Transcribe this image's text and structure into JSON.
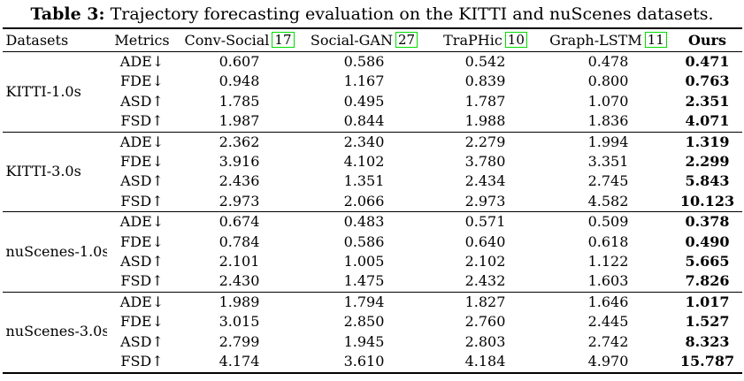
{
  "caption": {
    "label": "Table 3:",
    "text": " Trajectory forecasting evaluation on the KITTI and nuScenes datasets."
  },
  "table": {
    "headers": [
      {
        "label": "Datasets"
      },
      {
        "label": "Metrics"
      },
      {
        "label": "Conv-Social",
        "cite": "17"
      },
      {
        "label": "Social-GAN",
        "cite": "27"
      },
      {
        "label": "TraPHic",
        "cite": "10"
      },
      {
        "label": "Graph-LSTM",
        "cite": "11"
      },
      {
        "label": "Ours"
      }
    ],
    "groups": [
      {
        "dataset": "KITTI-1.0s",
        "rows": [
          {
            "metric": "ADE↓",
            "values": [
              "0.607",
              "0.586",
              "0.542",
              "0.478",
              "0.471"
            ]
          },
          {
            "metric": "FDE↓",
            "values": [
              "0.948",
              "1.167",
              "0.839",
              "0.800",
              "0.763"
            ]
          },
          {
            "metric": "ASD↑",
            "values": [
              "1.785",
              "0.495",
              "1.787",
              "1.070",
              "2.351"
            ]
          },
          {
            "metric": "FSD↑",
            "values": [
              "1.987",
              "0.844",
              "1.988",
              "1.836",
              "4.071"
            ]
          }
        ]
      },
      {
        "dataset": "KITTI-3.0s",
        "rows": [
          {
            "metric": "ADE↓",
            "values": [
              "2.362",
              "2.340",
              "2.279",
              "1.994",
              "1.319"
            ]
          },
          {
            "metric": "FDE↓",
            "values": [
              "3.916",
              "4.102",
              "3.780",
              "3.351",
              "2.299"
            ]
          },
          {
            "metric": "ASD↑",
            "values": [
              "2.436",
              "1.351",
              "2.434",
              "2.745",
              "5.843"
            ]
          },
          {
            "metric": "FSD↑",
            "values": [
              "2.973",
              "2.066",
              "2.973",
              "4.582",
              "10.123"
            ]
          }
        ]
      },
      {
        "dataset": "nuScenes-1.0s",
        "rows": [
          {
            "metric": "ADE↓",
            "values": [
              "0.674",
              "0.483",
              "0.571",
              "0.509",
              "0.378"
            ]
          },
          {
            "metric": "FDE↓",
            "values": [
              "0.784",
              "0.586",
              "0.640",
              "0.618",
              "0.490"
            ]
          },
          {
            "metric": "ASD↑",
            "values": [
              "2.101",
              "1.005",
              "2.102",
              "1.122",
              "5.665"
            ]
          },
          {
            "metric": "FSD↑",
            "values": [
              "2.430",
              "1.475",
              "2.432",
              "1.603",
              "7.826"
            ]
          }
        ]
      },
      {
        "dataset": "nuScenes-3.0s",
        "rows": [
          {
            "metric": "ADE↓",
            "values": [
              "1.989",
              "1.794",
              "1.827",
              "1.646",
              "1.017"
            ]
          },
          {
            "metric": "FDE↓",
            "values": [
              "3.015",
              "2.850",
              "2.760",
              "2.445",
              "1.527"
            ]
          },
          {
            "metric": "ASD↑",
            "values": [
              "2.799",
              "1.945",
              "2.803",
              "2.742",
              "8.323"
            ]
          },
          {
            "metric": "FSD↑",
            "values": [
              "4.174",
              "3.610",
              "4.184",
              "4.970",
              "15.787"
            ]
          }
        ]
      }
    ]
  },
  "colors": {
    "citation_border": "#00dd00",
    "text": "#000000",
    "background": "#ffffff"
  }
}
